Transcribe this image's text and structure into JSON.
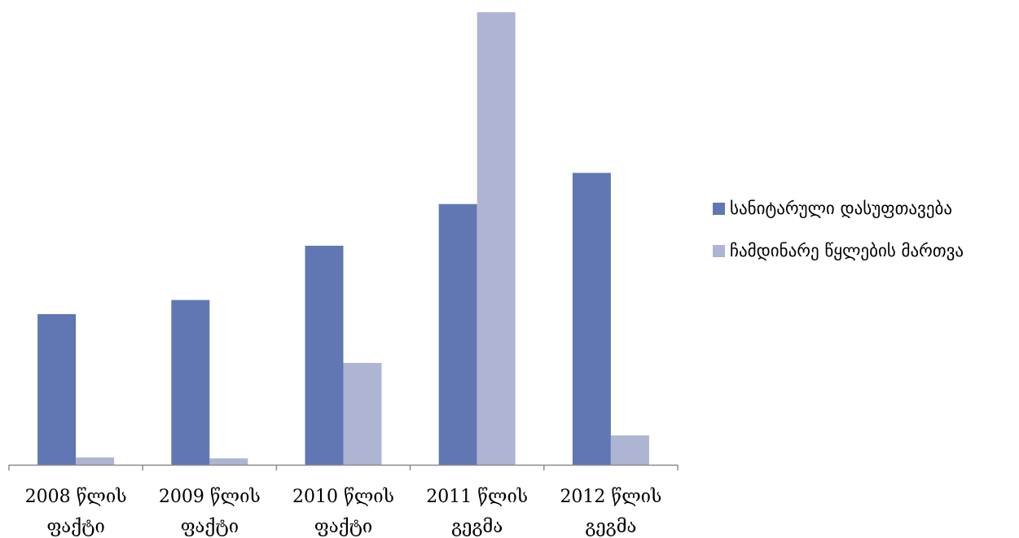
{
  "chart_data": {
    "type": "bar",
    "categories": [
      [
        "2008 წლის",
        "ფაქტი"
      ],
      [
        "2009 წლის",
        "ფაქტი"
      ],
      [
        "2010 წლის",
        "ფაქტი"
      ],
      [
        "2011 წლის",
        "გეგმა"
      ],
      [
        "2012 წლის",
        "გეგმა"
      ]
    ],
    "series": [
      {
        "name": "სანიტარული დასუფთავება",
        "color": "#6077b4",
        "values": [
          33.3,
          36.4,
          48.4,
          57.6,
          64.5
        ]
      },
      {
        "name": "ჩამდინარე წყლების მართვა",
        "color": "#adb5d3",
        "values": [
          1.6,
          1.4,
          22.5,
          100,
          6.5
        ]
      }
    ],
    "title": "",
    "xlabel": "",
    "ylabel": "",
    "ylim": [
      0,
      100
    ],
    "grid": false,
    "legend_position": "right"
  }
}
